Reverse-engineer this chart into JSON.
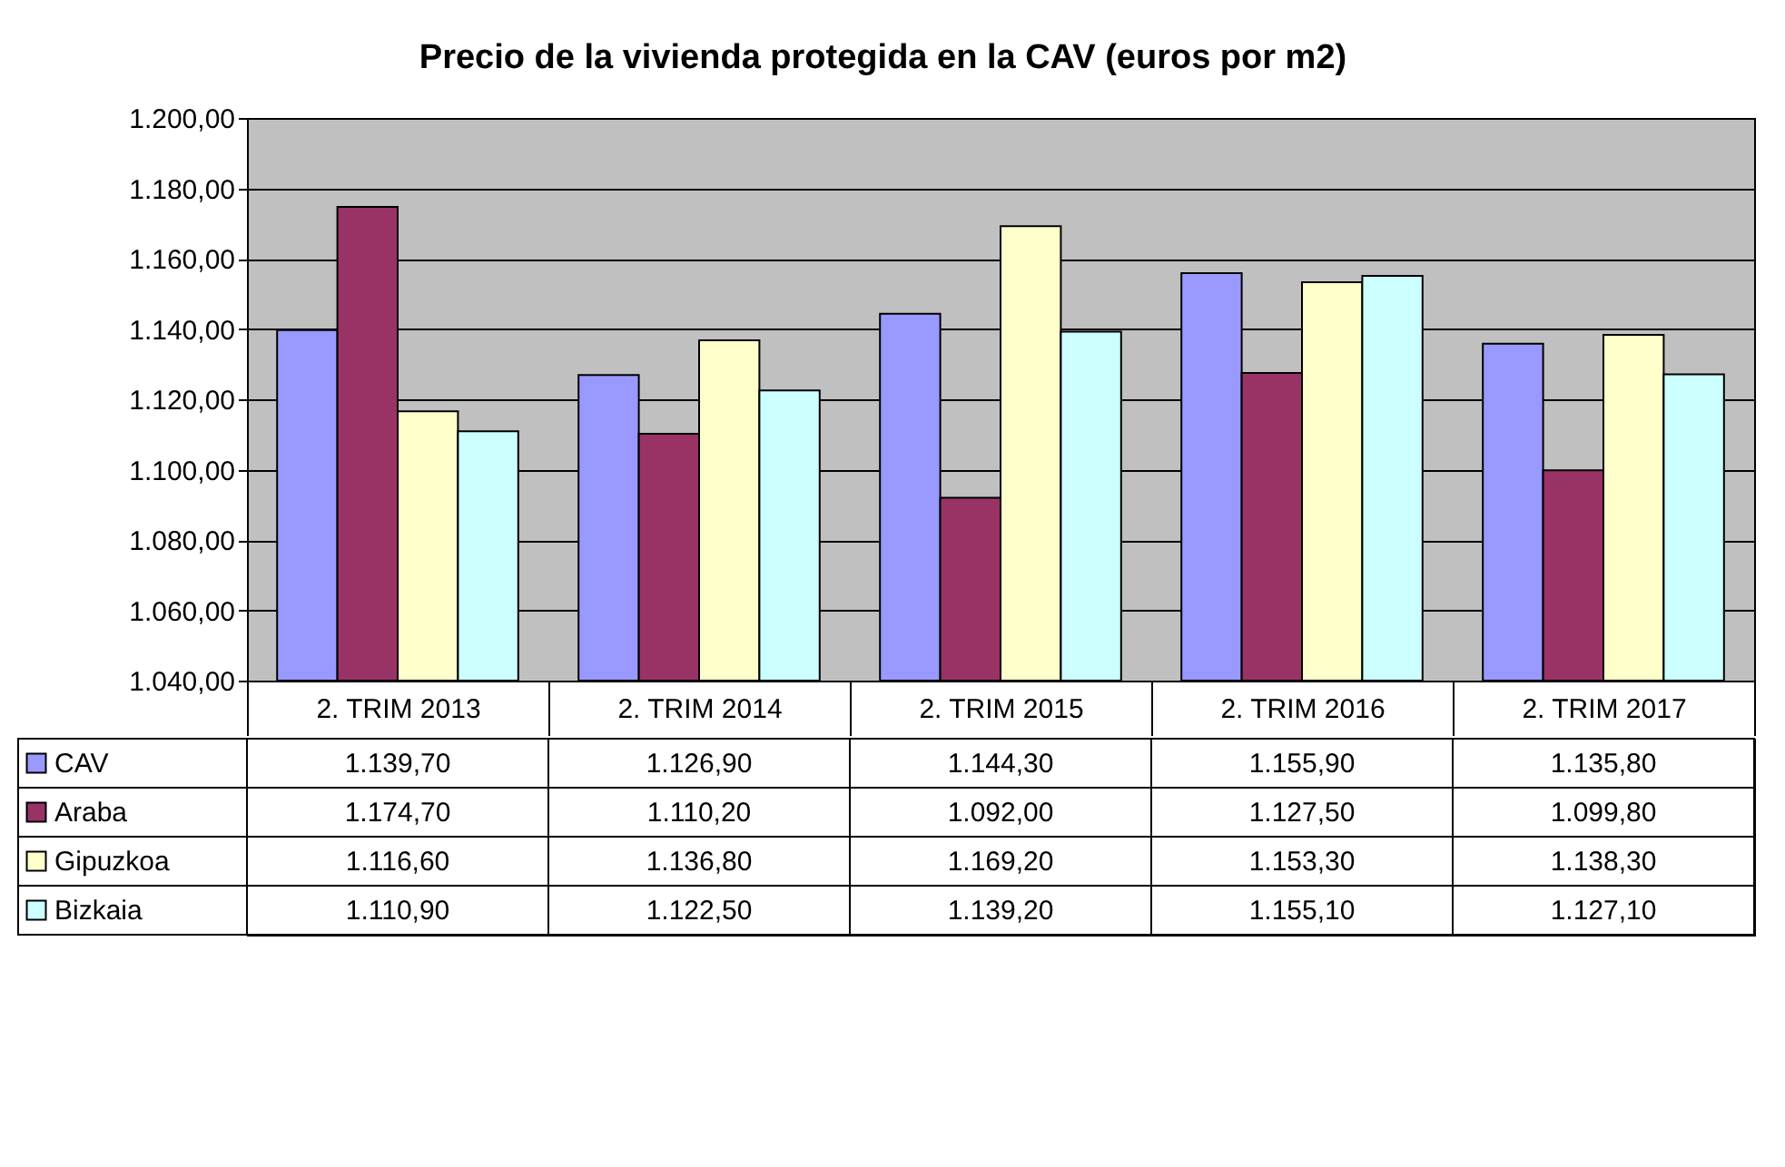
{
  "chart_data": {
    "type": "bar",
    "title": "Precio de la vivienda protegida en la CAV (euros por m2)",
    "categories": [
      "2. TRIM 2013",
      "2. TRIM 2014",
      "2. TRIM 2015",
      "2. TRIM 2016",
      "2. TRIM 2017"
    ],
    "series": [
      {
        "name": "CAV",
        "color": "#9999ff",
        "values": [
          1139.7,
          1126.9,
          1144.3,
          1155.9,
          1135.8
        ],
        "value_labels": [
          "1.139,70",
          "1.126,90",
          "1.144,30",
          "1.155,90",
          "1.135,80"
        ]
      },
      {
        "name": "Araba",
        "color": "#993366",
        "values": [
          1174.7,
          1110.2,
          1092.0,
          1127.5,
          1099.8
        ],
        "value_labels": [
          "1.174,70",
          "1.110,20",
          "1.092,00",
          "1.127,50",
          "1.099,80"
        ]
      },
      {
        "name": "Gipuzkoa",
        "color": "#ffffcc",
        "values": [
          1116.6,
          1136.8,
          1169.2,
          1153.3,
          1138.3
        ],
        "value_labels": [
          "1.116,60",
          "1.136,80",
          "1.169,20",
          "1.153,30",
          "1.138,30"
        ]
      },
      {
        "name": "Bizkaia",
        "color": "#ccffff",
        "values": [
          1110.9,
          1122.5,
          1139.2,
          1155.1,
          1127.1
        ],
        "value_labels": [
          "1.110,90",
          "1.122,50",
          "1.139,20",
          "1.155,10",
          "1.127,10"
        ]
      }
    ],
    "ylim": [
      1040,
      1200
    ],
    "yticks": [
      {
        "value": 1040,
        "label": "1.040,00"
      },
      {
        "value": 1060,
        "label": "1.060,00"
      },
      {
        "value": 1080,
        "label": "1.080,00"
      },
      {
        "value": 1100,
        "label": "1.100,00"
      },
      {
        "value": 1120,
        "label": "1.120,00"
      },
      {
        "value": 1140,
        "label": "1.140,00"
      },
      {
        "value": 1160,
        "label": "1.160,00"
      },
      {
        "value": 1180,
        "label": "1.180,00"
      },
      {
        "value": 1200,
        "label": "1.200,00"
      }
    ],
    "grid": "y",
    "legend": "bottom"
  }
}
